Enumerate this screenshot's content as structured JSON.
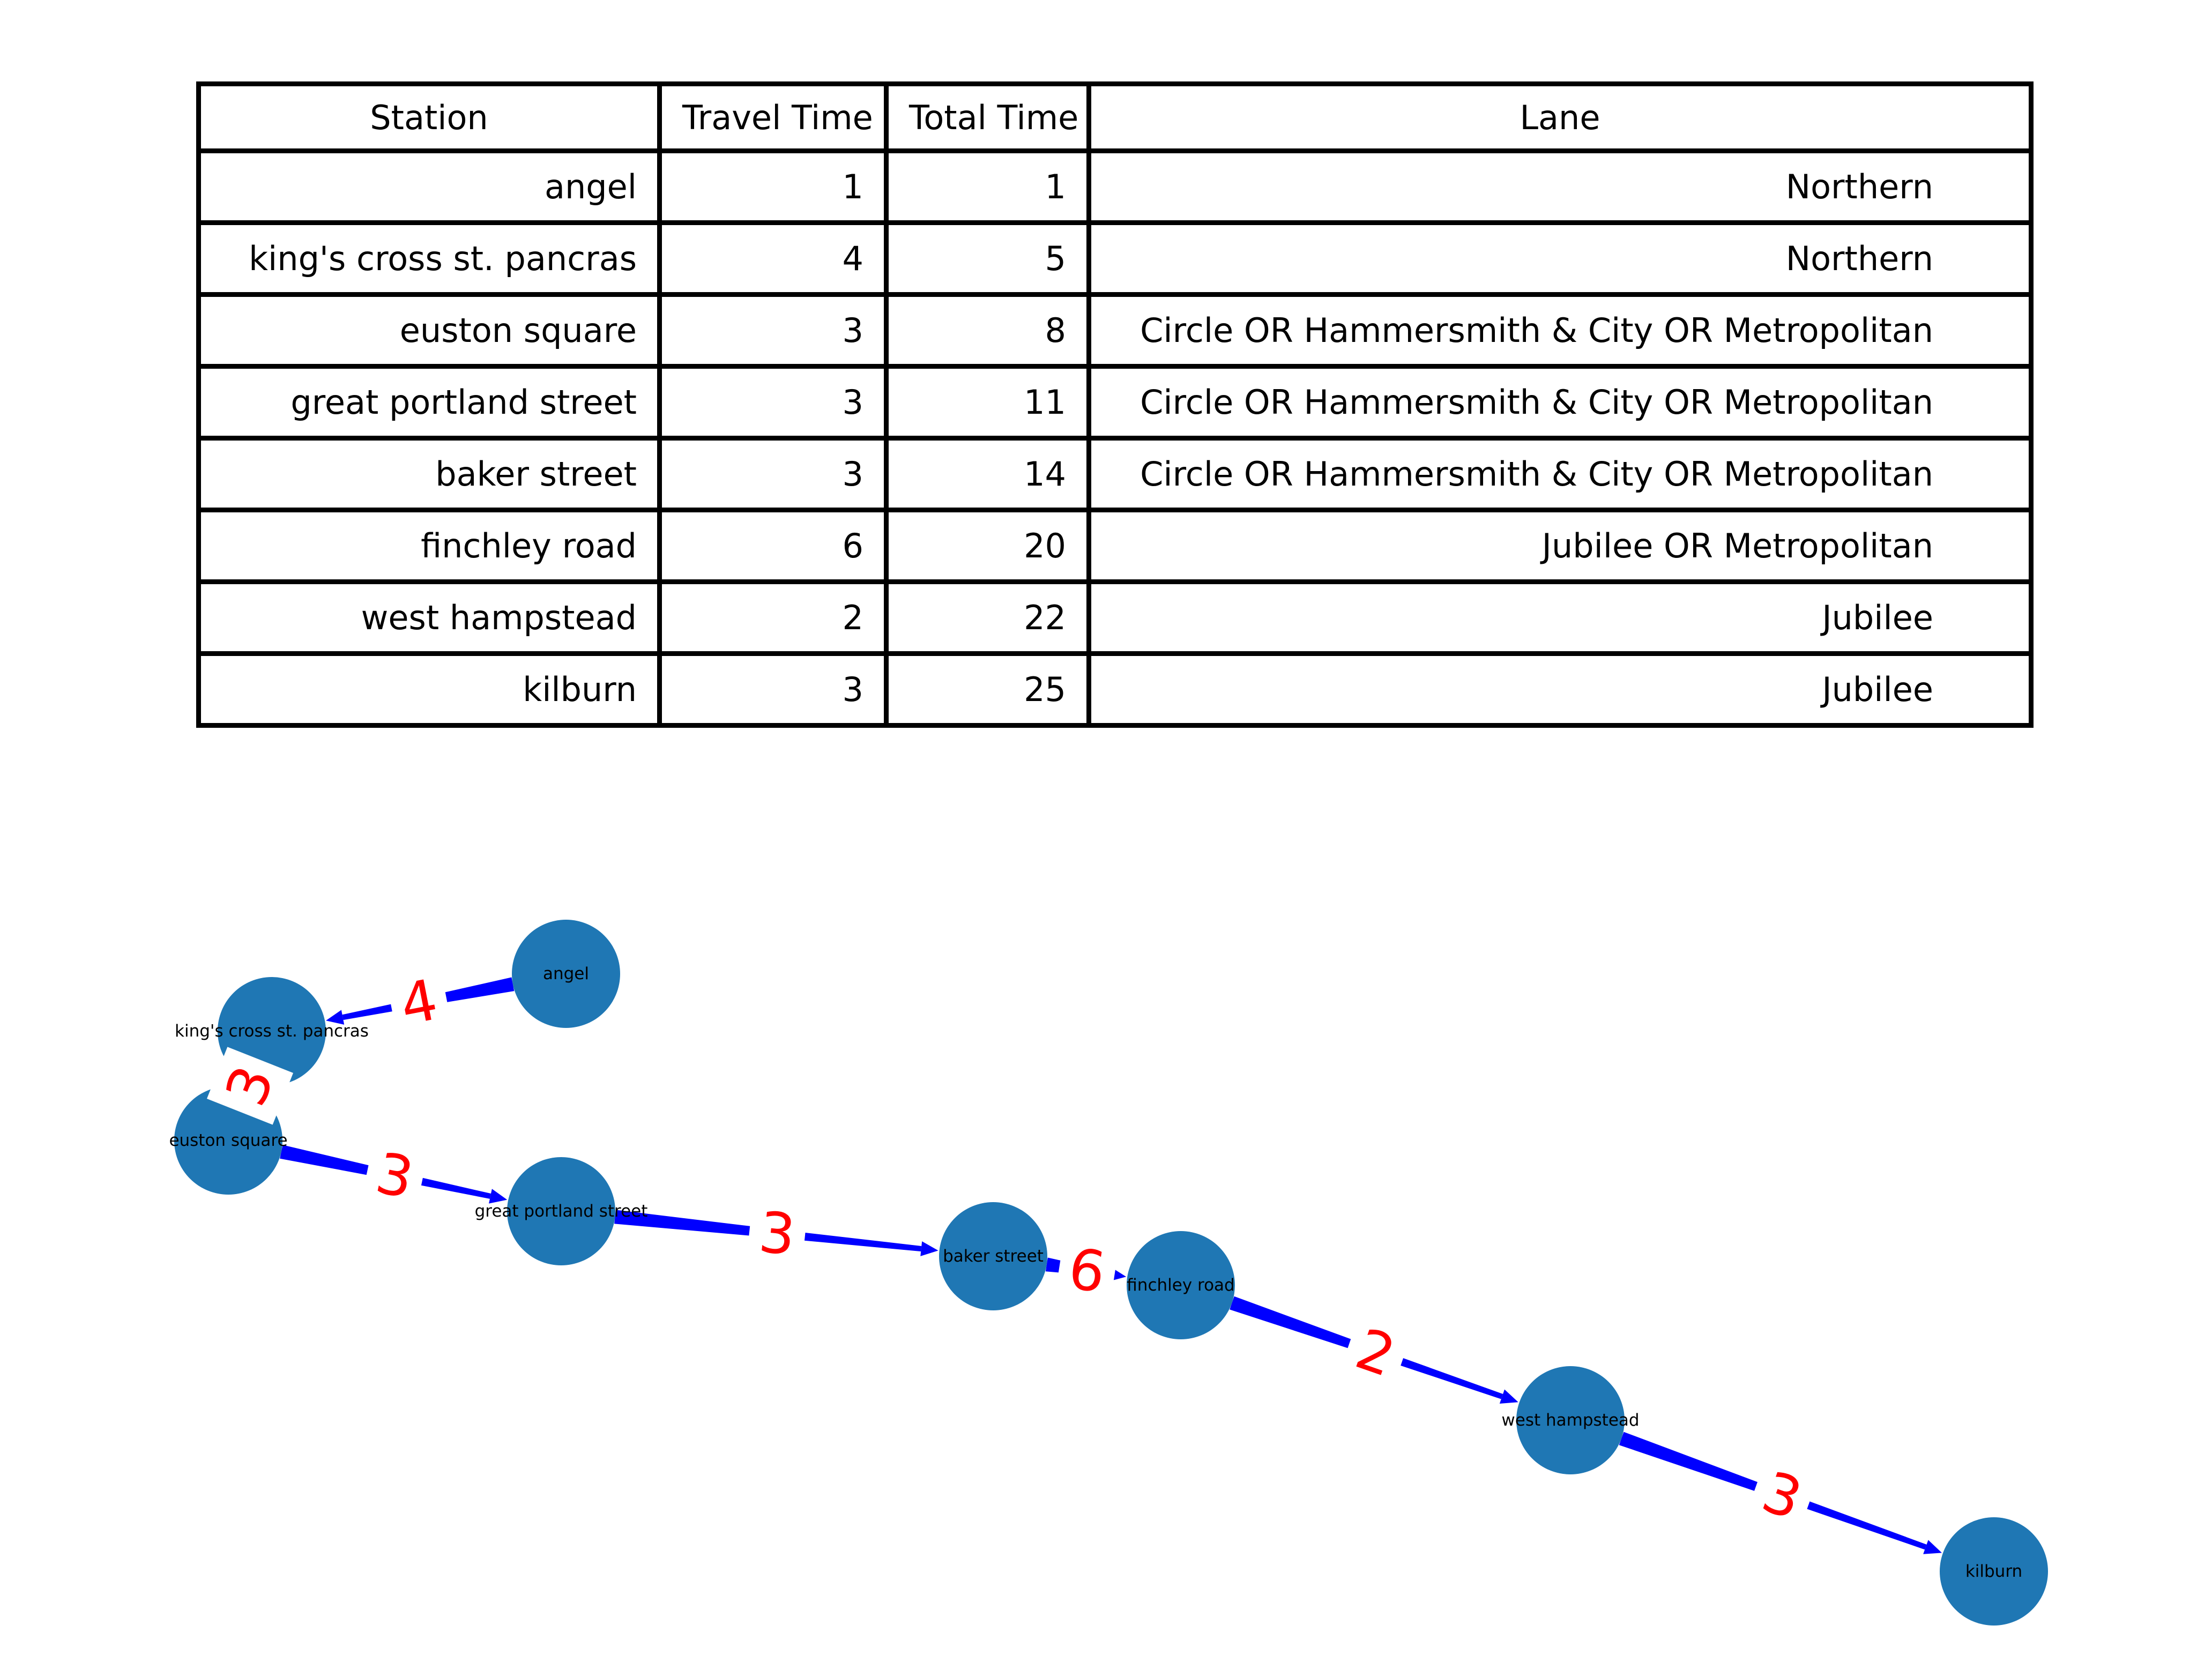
{
  "table": {
    "headers": [
      "Station",
      "Travel Time",
      "Total Time",
      "Lane"
    ],
    "rows": [
      [
        "angel",
        "1",
        "1",
        "Northern"
      ],
      [
        "king's cross st. pancras",
        "4",
        "5",
        "Northern"
      ],
      [
        "euston square",
        "3",
        "8",
        "Circle OR Hammersmith & City OR Metropolitan"
      ],
      [
        "great portland street",
        "3",
        "11",
        "Circle OR Hammersmith & City OR Metropolitan"
      ],
      [
        "baker street",
        "3",
        "14",
        "Circle OR Hammersmith & City OR Metropolitan"
      ],
      [
        "finchley road",
        "6",
        "20",
        "Jubilee OR Metropolitan"
      ],
      [
        "west hampstead",
        "2",
        "22",
        "Jubilee"
      ],
      [
        "kilburn",
        "3",
        "25",
        "Jubilee"
      ]
    ]
  },
  "graph": {
    "node_color": "#1f77b4",
    "edge_color": "#0000ff",
    "edge_label_color": "#ff0000",
    "nodes": [
      "angel",
      "king's cross st. pancras",
      "euston square",
      "great portland street",
      "baker street",
      "finchley road",
      "west hampstead",
      "kilburn"
    ],
    "edges": [
      {
        "from": "angel",
        "to": "king's cross st. pancras",
        "weight": "4"
      },
      {
        "from": "king's cross st. pancras",
        "to": "euston square",
        "weight": "3"
      },
      {
        "from": "euston square",
        "to": "great portland street",
        "weight": "3"
      },
      {
        "from": "great portland street",
        "to": "baker street",
        "weight": "3"
      },
      {
        "from": "baker street",
        "to": "finchley road",
        "weight": "6"
      },
      {
        "from": "finchley road",
        "to": "west hampstead",
        "weight": "2"
      },
      {
        "from": "west hampstead",
        "to": "kilburn",
        "weight": "3"
      }
    ]
  }
}
